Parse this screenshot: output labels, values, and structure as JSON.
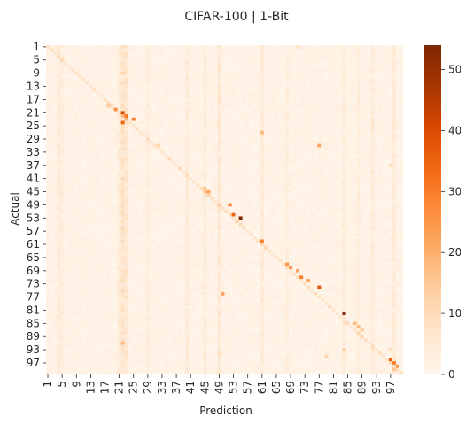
{
  "chart_data": {
    "type": "heatmap",
    "title": "CIFAR-100 | 1-Bit",
    "xlabel": "Prediction",
    "ylabel": "Actual",
    "n_classes": 100,
    "x_tick_labels": [
      "1",
      "5",
      "9",
      "13",
      "17",
      "21",
      "25",
      "29",
      "33",
      "37",
      "41",
      "45",
      "49",
      "53",
      "57",
      "61",
      "65",
      "69",
      "73",
      "77",
      "81",
      "85",
      "89",
      "93",
      "97"
    ],
    "y_tick_labels": [
      "1",
      "5",
      "9",
      "13",
      "17",
      "21",
      "25",
      "29",
      "33",
      "37",
      "41",
      "45",
      "49",
      "53",
      "57",
      "61",
      "65",
      "69",
      "73",
      "77",
      "81",
      "85",
      "89",
      "93",
      "97"
    ],
    "colorbar": {
      "min": 0,
      "max": 54,
      "ticks": [
        "0",
        "10",
        "20",
        "30",
        "40",
        "50"
      ]
    },
    "colorscale": [
      "#fff5eb",
      "#fee6ce",
      "#fdd0a2",
      "#fdae6b",
      "#fd8d3c",
      "#f16913",
      "#d94801",
      "#a63603",
      "#7f2704"
    ],
    "background_level": 2,
    "column_biases": [
      {
        "col": 21,
        "value": 6
      },
      {
        "col": 22,
        "value": 5
      },
      {
        "col": 20,
        "value": 3
      },
      {
        "col": 3,
        "value": 3
      },
      {
        "col": 48,
        "value": 4
      },
      {
        "col": 39,
        "value": 3
      },
      {
        "col": 44,
        "value": 3
      },
      {
        "col": 60,
        "value": 3
      },
      {
        "col": 83,
        "value": 3
      },
      {
        "col": 91,
        "value": 3
      },
      {
        "col": 97,
        "value": 3
      },
      {
        "col": 4,
        "value": 2
      },
      {
        "col": 28,
        "value": 2
      },
      {
        "col": 67,
        "value": 2
      },
      {
        "col": 87,
        "value": 2
      }
    ],
    "highlight_cells": [
      {
        "row": 20,
        "col": 21,
        "value": 40
      },
      {
        "row": 21,
        "col": 22,
        "value": 32
      },
      {
        "row": 22,
        "col": 24,
        "value": 30
      },
      {
        "row": 23,
        "col": 21,
        "value": 35
      },
      {
        "row": 19,
        "col": 19,
        "value": 28
      },
      {
        "row": 18,
        "col": 17,
        "value": 14
      },
      {
        "row": 8,
        "col": 21,
        "value": 12
      },
      {
        "row": 26,
        "col": 60,
        "value": 18
      },
      {
        "row": 30,
        "col": 76,
        "value": 22
      },
      {
        "row": 30,
        "col": 31,
        "value": 12
      },
      {
        "row": 43,
        "col": 44,
        "value": 15
      },
      {
        "row": 44,
        "col": 45,
        "value": 22
      },
      {
        "row": 48,
        "col": 51,
        "value": 30
      },
      {
        "row": 51,
        "col": 52,
        "value": 35
      },
      {
        "row": 52,
        "col": 54,
        "value": 54
      },
      {
        "row": 53,
        "col": 53,
        "value": 14
      },
      {
        "row": 59,
        "col": 60,
        "value": 30
      },
      {
        "row": 66,
        "col": 67,
        "value": 25
      },
      {
        "row": 67,
        "col": 68,
        "value": 25
      },
      {
        "row": 68,
        "col": 70,
        "value": 22
      },
      {
        "row": 70,
        "col": 71,
        "value": 30
      },
      {
        "row": 71,
        "col": 73,
        "value": 22
      },
      {
        "row": 73,
        "col": 76,
        "value": 38
      },
      {
        "row": 75,
        "col": 49,
        "value": 22
      },
      {
        "row": 81,
        "col": 83,
        "value": 54
      },
      {
        "row": 84,
        "col": 86,
        "value": 18
      },
      {
        "row": 85,
        "col": 87,
        "value": 18
      },
      {
        "row": 86,
        "col": 88,
        "value": 14
      },
      {
        "row": 90,
        "col": 21,
        "value": 18
      },
      {
        "row": 92,
        "col": 83,
        "value": 15
      },
      {
        "row": 94,
        "col": 78,
        "value": 12
      },
      {
        "row": 95,
        "col": 96,
        "value": 35
      },
      {
        "row": 96,
        "col": 97,
        "value": 30
      },
      {
        "row": 97,
        "col": 98,
        "value": 25
      },
      {
        "row": 98,
        "col": 97,
        "value": 15
      },
      {
        "row": 36,
        "col": 96,
        "value": 10
      },
      {
        "row": 92,
        "col": 96,
        "value": 10
      },
      {
        "row": 0,
        "col": 70,
        "value": 8
      }
    ],
    "grid": false,
    "legend": "colorbar-right"
  }
}
